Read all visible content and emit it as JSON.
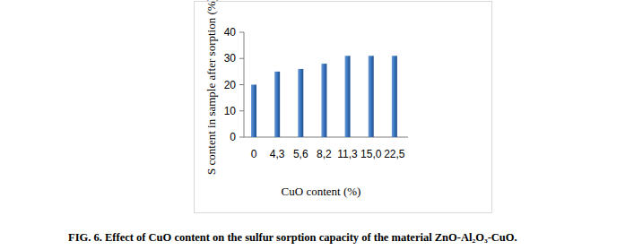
{
  "chart_data": {
    "type": "bar",
    "title": "FIG. 6. Effect of CuO content on the sulfur sorption capacity of the material ZnO-Al₂O₃-CuO.",
    "x_label": "CuO content (%)",
    "y_label": "S content in sample after sorption (%)",
    "categories": [
      "0",
      "4,3",
      "5,6",
      "8,2",
      "11,3",
      "15,0",
      "22,5"
    ],
    "values": [
      20,
      25,
      26,
      28,
      31,
      31,
      31
    ],
    "color": "#3b78c4",
    "ylim": [
      0,
      40
    ],
    "yticks": [
      0,
      10,
      20,
      30,
      40
    ],
    "grid": false
  }
}
